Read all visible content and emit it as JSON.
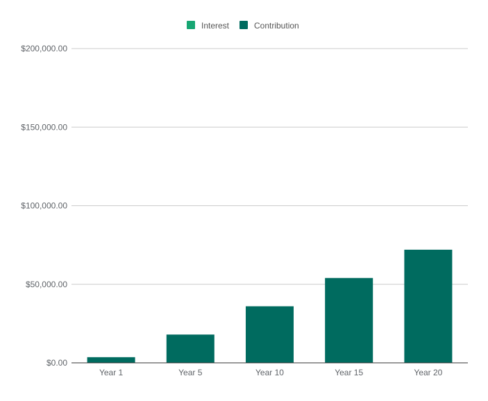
{
  "chart_data": {
    "type": "bar",
    "stacked": true,
    "title": "",
    "xlabel": "",
    "ylabel": "",
    "categories": [
      "Year 1",
      "Year 5",
      "Year 10",
      "Year 15",
      "Year 20"
    ],
    "series": [
      {
        "name": "Interest",
        "color": "#17a673",
        "values": [
          0,
          0,
          0,
          0,
          0
        ]
      },
      {
        "name": "Contribution",
        "color": "#006b5f",
        "values": [
          3600,
          18000,
          36000,
          54000,
          72000
        ]
      }
    ],
    "ylim": [
      0,
      200000
    ],
    "yticks": [
      0,
      50000,
      100000,
      150000,
      200000
    ],
    "ytick_labels": [
      "$0.00",
      "$50,000.00",
      "$100,000.00",
      "$150,000.00",
      "$200,000.00"
    ],
    "grid": true,
    "legend_position": "top-center"
  }
}
